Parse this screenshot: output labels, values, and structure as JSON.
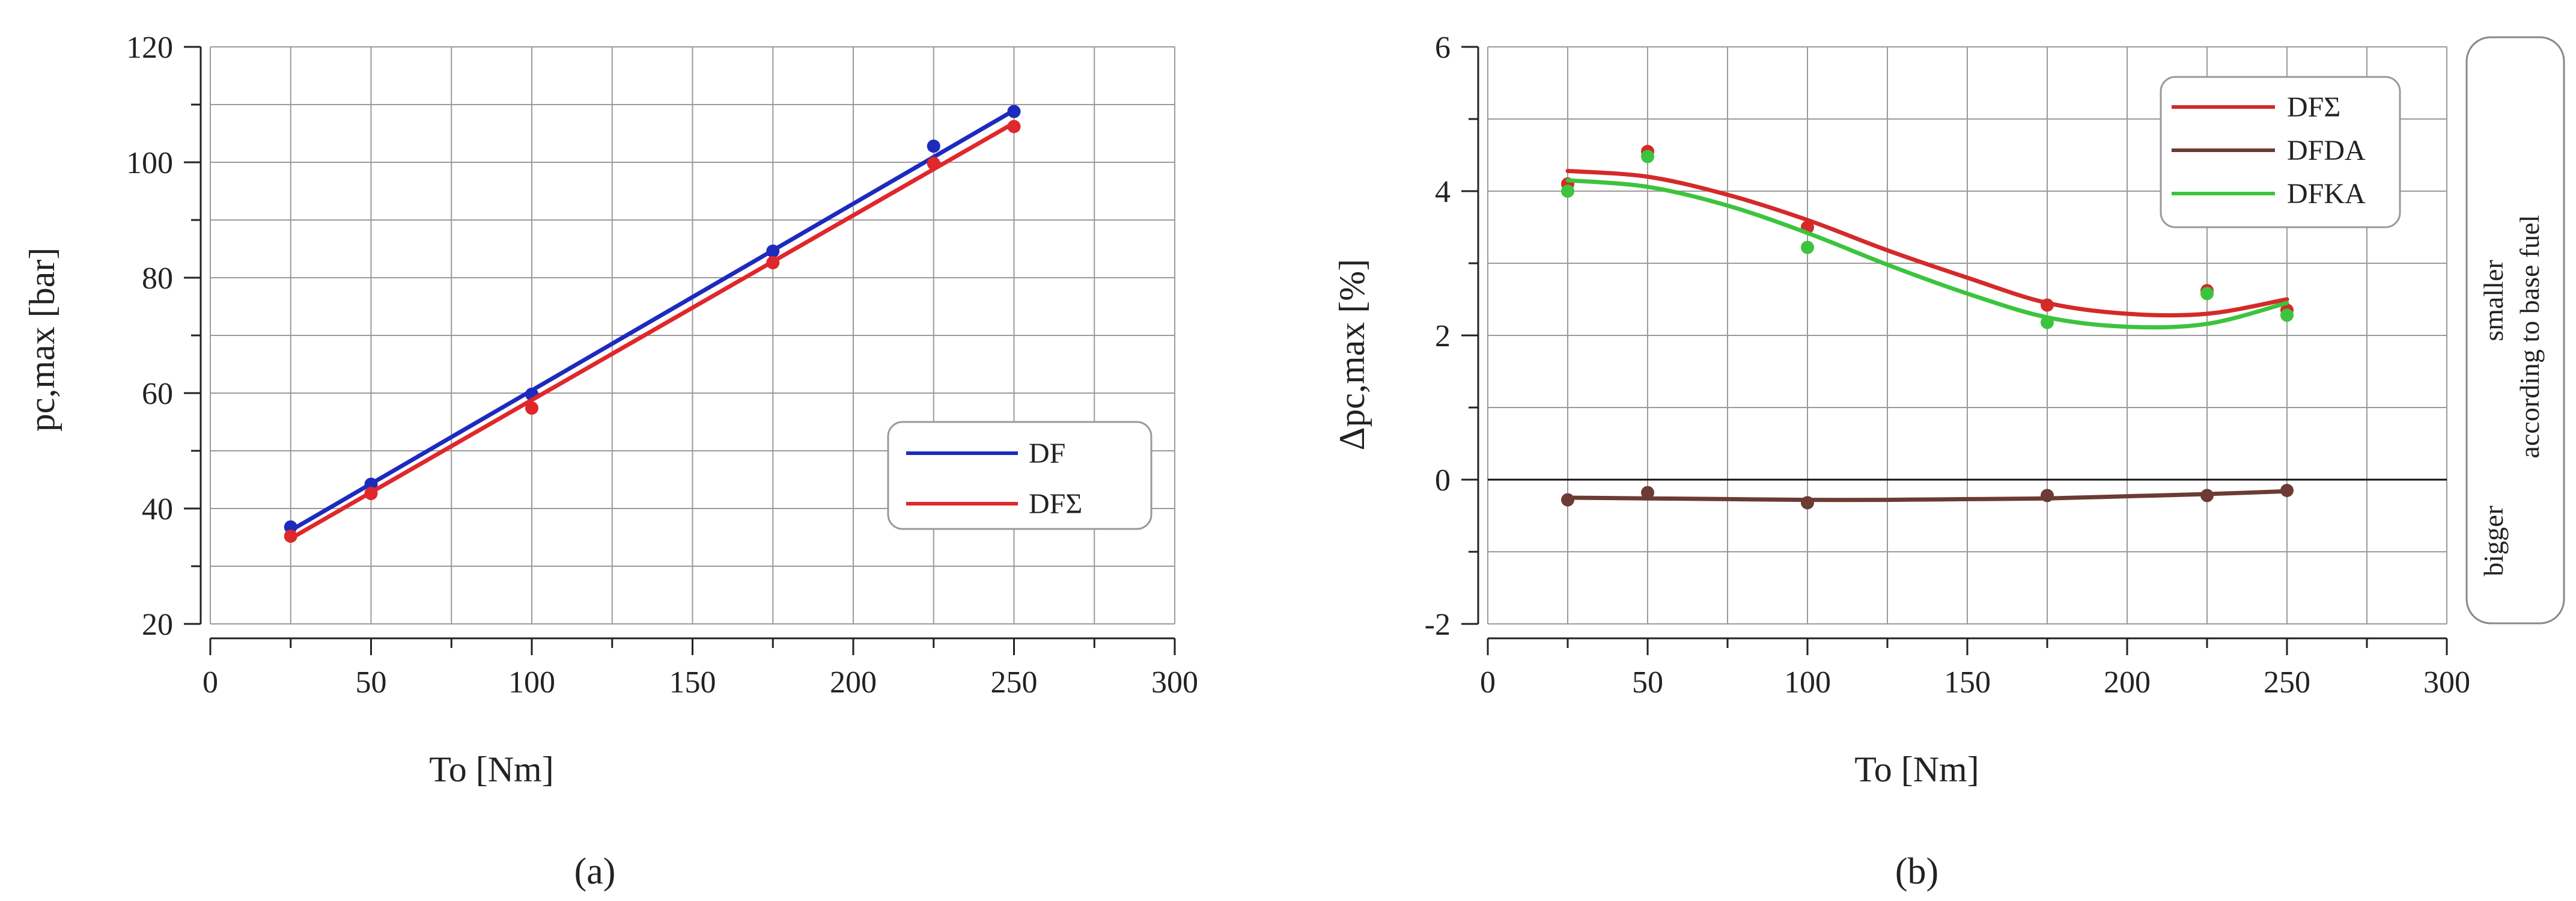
{
  "figure": {
    "panel_labels": [
      "(a)",
      "(b)"
    ],
    "side_note": {
      "upper_lines": [
        "smaller",
        "according to base fuel"
      ],
      "lower_line": "bigger"
    }
  },
  "chart_data": [
    {
      "type": "line",
      "panel": "(a)",
      "title": "",
      "xlabel": "To [Nm]",
      "ylabel": "pc,max [bar]",
      "xlim": [
        0,
        300
      ],
      "ylim": [
        20,
        120
      ],
      "xticks": [
        0,
        50,
        100,
        150,
        200,
        250,
        300
      ],
      "yticks": [
        20,
        40,
        60,
        80,
        100,
        120
      ],
      "grid": true,
      "legend": "lower-right",
      "series": [
        {
          "name": "DF",
          "color": "#1c2bbd",
          "points": {
            "x": [
              25,
              50,
              100,
              175,
              225,
              250
            ],
            "y": [
              36.8,
              44.2,
              59.8,
              84.6,
              102.8,
              108.8
            ]
          },
          "fit": {
            "x": [
              25,
              250
            ],
            "y": [
              36.2,
              109.0
            ]
          }
        },
        {
          "name": "DFΣ",
          "color": "#e0272b",
          "points": {
            "x": [
              25,
              50,
              100,
              175,
              225,
              250
            ],
            "y": [
              35.2,
              42.6,
              57.4,
              82.6,
              99.8,
              106.2
            ]
          },
          "fit": {
            "x": [
              25,
              250
            ],
            "y": [
              34.8,
              106.8
            ]
          }
        }
      ]
    },
    {
      "type": "line",
      "panel": "(b)",
      "title": "",
      "xlabel": "To [Nm]",
      "ylabel": "Δpc,max [%]",
      "xlim": [
        0,
        300
      ],
      "ylim": [
        -2,
        6
      ],
      "xticks": [
        0,
        50,
        100,
        150,
        200,
        250,
        300
      ],
      "yticks": [
        -2,
        0,
        2,
        4,
        6
      ],
      "grid": true,
      "legend": "top-right",
      "series": [
        {
          "name": "DFΣ",
          "color": "#d42a2a",
          "points": {
            "x": [
              25,
              50,
              100,
              175,
              225,
              250
            ],
            "y": [
              4.1,
              4.55,
              3.5,
              2.42,
              2.62,
              2.35
            ]
          },
          "fit": {
            "x": [
              25,
              50,
              75,
              100,
              125,
              150,
              175,
              200,
              225,
              250
            ],
            "y": [
              4.28,
              4.2,
              3.95,
              3.6,
              3.18,
              2.8,
              2.45,
              2.3,
              2.3,
              2.5
            ]
          }
        },
        {
          "name": "DFDA",
          "color": "#6b3b34",
          "points": {
            "x": [
              25,
              50,
              100,
              175,
              225,
              250
            ],
            "y": [
              -0.28,
              -0.18,
              -0.32,
              -0.22,
              -0.22,
              -0.15
            ]
          },
          "fit": {
            "x": [
              25,
              50,
              75,
              100,
              125,
              150,
              175,
              200,
              225,
              250
            ],
            "y": [
              -0.25,
              -0.26,
              -0.27,
              -0.28,
              -0.28,
              -0.27,
              -0.26,
              -0.23,
              -0.2,
              -0.16
            ]
          }
        },
        {
          "name": "DFKA",
          "color": "#3cc43c",
          "points": {
            "x": [
              25,
              50,
              100,
              175,
              225,
              250
            ],
            "y": [
              4.0,
              4.48,
              3.22,
              2.18,
              2.58,
              2.28
            ]
          },
          "fit": {
            "x": [
              25,
              50,
              75,
              100,
              125,
              150,
              175,
              200,
              225,
              250
            ],
            "y": [
              4.15,
              4.06,
              3.8,
              3.42,
              2.98,
              2.58,
              2.25,
              2.12,
              2.16,
              2.45
            ]
          }
        }
      ],
      "reference_line": {
        "y": 0,
        "color": "#111111"
      }
    }
  ]
}
